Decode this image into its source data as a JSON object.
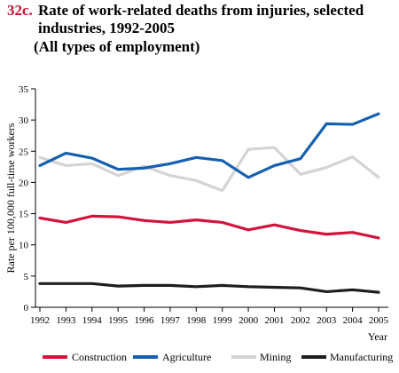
{
  "header": {
    "number": "32c.",
    "line1": "Rate of work-related deaths from injuries, selected",
    "line2": "industries, 1992-2005",
    "line3": "(All types of employment)"
  },
  "chart_data": {
    "type": "line",
    "x": [
      "1992",
      "1993",
      "1994",
      "1995",
      "1996",
      "1997",
      "1998",
      "1999",
      "2000",
      "2001",
      "2002",
      "2003",
      "2004",
      "2005"
    ],
    "series": [
      {
        "name": "Construction",
        "color": "#d2143c",
        "values": [
          14.3,
          13.6,
          14.6,
          14.5,
          13.9,
          13.6,
          14.0,
          13.6,
          12.4,
          13.2,
          12.3,
          11.7,
          12.0,
          11.1
        ]
      },
      {
        "name": "Agriculture",
        "color": "#1560b0",
        "values": [
          22.7,
          24.7,
          23.9,
          22.1,
          22.3,
          23.0,
          24.0,
          23.5,
          20.8,
          22.7,
          23.8,
          29.4,
          29.3,
          31.0
        ]
      },
      {
        "name": "Mining",
        "color": "#d4d4d4",
        "values": [
          24.0,
          22.7,
          23.0,
          21.1,
          22.6,
          21.1,
          20.3,
          18.7,
          25.3,
          25.6,
          21.3,
          22.4,
          24.1,
          20.8
        ]
      },
      {
        "name": "Manufacturing",
        "color": "#1e1e1e",
        "values": [
          3.8,
          3.8,
          3.8,
          3.4,
          3.5,
          3.5,
          3.3,
          3.5,
          3.3,
          3.2,
          3.1,
          2.5,
          2.8,
          2.4
        ]
      }
    ],
    "xlabel": "Year",
    "ylabel": "Rate per 100,000  full-time workers",
    "ylim": [
      0,
      35
    ],
    "yticks": [
      "0",
      "5",
      "10",
      "15",
      "20",
      "25",
      "30",
      "35"
    ],
    "grid": false,
    "legend_position": "bottom"
  }
}
